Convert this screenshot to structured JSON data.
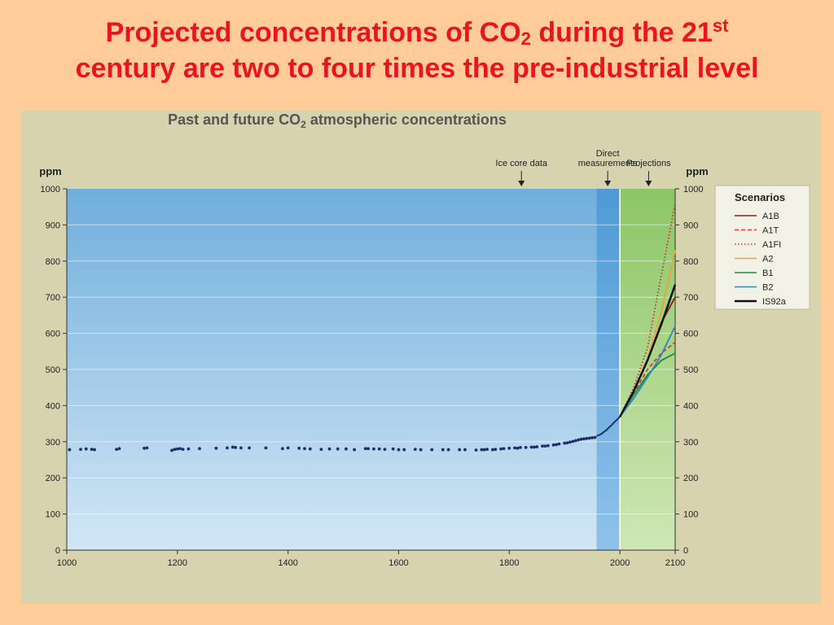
{
  "slide": {
    "title_line1_a": "Projected concentrations of CO",
    "title_line1_sub": "2",
    "title_line1_b": " during the 21",
    "title_line1_sup": "st",
    "title_line2": "century are two to four times the pre-industrial level"
  },
  "colors": {
    "title": "#E8141E",
    "background": "#FFCC99",
    "panel": "#D6D3AE",
    "past_region": "#7DB5E0",
    "direct_region": "#4E9AD6",
    "projection_region": "#9ACD6E",
    "ice_core_points": "#1B2F6B"
  },
  "chart_data": {
    "type": "line",
    "title": "Past and future CO",
    "title_sub": "2",
    "title_suffix": " atmospheric concentrations",
    "ylabel_left": "ppm",
    "ylabel_right": "ppm",
    "xlim": [
      1000,
      2100
    ],
    "ylim": [
      0,
      1000
    ],
    "x_ticks": [
      1000,
      1200,
      1400,
      1600,
      1800,
      2000,
      2100
    ],
    "y_ticks": [
      0,
      100,
      200,
      300,
      400,
      500,
      600,
      700,
      800,
      900,
      1000
    ],
    "grid": true,
    "regions": [
      {
        "name": "ice-core",
        "from": 1000,
        "to": 1958
      },
      {
        "name": "direct",
        "from": 1958,
        "to": 2000
      },
      {
        "name": "projections",
        "from": 2000,
        "to": 2100
      }
    ],
    "annotations": [
      {
        "text": [
          "Ice core data"
        ],
        "x": 1822
      },
      {
        "text": [
          "Direct",
          "measurements"
        ],
        "x": 1978
      },
      {
        "text": [
          "Projections"
        ],
        "x": 2052
      }
    ],
    "legend": {
      "title": "Scenarios",
      "position": "right",
      "entries": [
        {
          "label": "A1B",
          "color": "#8B1A1A",
          "dash": "solid"
        },
        {
          "label": "A1T",
          "color": "#D23C3C",
          "dash": "dashed"
        },
        {
          "label": "A1FI",
          "color": "#C0392B",
          "dash": "dotted"
        },
        {
          "label": "A2",
          "color": "#E8A33D",
          "dash": "solid"
        },
        {
          "label": "B1",
          "color": "#1F8A3B",
          "dash": "solid"
        },
        {
          "label": "B2",
          "color": "#2E86C1",
          "dash": "solid"
        },
        {
          "label": "IS92a",
          "color": "#111111",
          "dash": "solid"
        }
      ]
    },
    "ice_core": {
      "x": [
        1005,
        1025,
        1035,
        1045,
        1050,
        1090,
        1095,
        1140,
        1145,
        1190,
        1195,
        1200,
        1205,
        1210,
        1220,
        1240,
        1270,
        1290,
        1300,
        1305,
        1315,
        1330,
        1360,
        1390,
        1400,
        1420,
        1430,
        1440,
        1460,
        1475,
        1490,
        1505,
        1520,
        1540,
        1545,
        1555,
        1565,
        1575,
        1590,
        1600,
        1610,
        1630,
        1640,
        1660,
        1680,
        1690,
        1710,
        1720,
        1740,
        1750,
        1755,
        1760,
        1770,
        1775,
        1785,
        1790,
        1800,
        1810,
        1815,
        1820,
        1830,
        1840,
        1845,
        1850,
        1860,
        1865,
        1870,
        1880,
        1885,
        1890,
        1900,
        1905,
        1910,
        1915,
        1920,
        1925,
        1930,
        1935,
        1940,
        1945,
        1950,
        1955
      ],
      "y": [
        278,
        279,
        280,
        279,
        278,
        279,
        281,
        282,
        283,
        276,
        279,
        280,
        281,
        279,
        280,
        281,
        282,
        283,
        285,
        284,
        283,
        283,
        283,
        281,
        283,
        282,
        281,
        280,
        279,
        280,
        280,
        280,
        278,
        281,
        281,
        280,
        280,
        279,
        280,
        278,
        278,
        279,
        278,
        278,
        278,
        278,
        278,
        278,
        277,
        278,
        278,
        279,
        278,
        279,
        280,
        281,
        282,
        283,
        282,
        284,
        284,
        285,
        285,
        286,
        288,
        288,
        289,
        291,
        292,
        294,
        296,
        297,
        299,
        301,
        303,
        305,
        307,
        308,
        309,
        310,
        311,
        312
      ]
    },
    "direct": {
      "x": [
        1958,
        1965,
        1970,
        1975,
        1980,
        1985,
        1990,
        1995,
        2000
      ],
      "y": [
        316,
        320,
        326,
        331,
        339,
        346,
        354,
        361,
        369
      ]
    },
    "series": [
      {
        "name": "A1B",
        "x": [
          2000,
          2025,
          2050,
          2075,
          2100
        ],
        "y": [
          369,
          440,
          525,
          630,
          700
        ]
      },
      {
        "name": "A1T",
        "x": [
          2000,
          2025,
          2050,
          2075,
          2100
        ],
        "y": [
          369,
          435,
          500,
          545,
          575
        ]
      },
      {
        "name": "A1FI",
        "x": [
          2000,
          2025,
          2050,
          2075,
          2100
        ],
        "y": [
          369,
          450,
          560,
          760,
          960
        ]
      },
      {
        "name": "A2",
        "x": [
          2000,
          2025,
          2050,
          2075,
          2100
        ],
        "y": [
          369,
          440,
          530,
          660,
          830
        ]
      },
      {
        "name": "B1",
        "x": [
          2000,
          2025,
          2050,
          2075,
          2100
        ],
        "y": [
          369,
          430,
          485,
          525,
          545
        ]
      },
      {
        "name": "B2",
        "x": [
          2000,
          2025,
          2050,
          2075,
          2100
        ],
        "y": [
          369,
          420,
          478,
          540,
          620
        ]
      },
      {
        "name": "IS92a",
        "x": [
          2000,
          2025,
          2050,
          2075,
          2100
        ],
        "y": [
          369,
          440,
          525,
          625,
          735
        ]
      }
    ]
  }
}
